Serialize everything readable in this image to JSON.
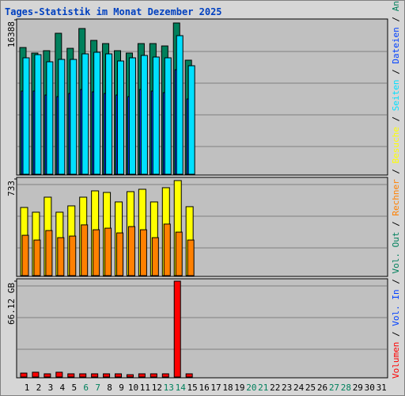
{
  "chart_data": [
    {
      "type": "bar",
      "title": "Tages-Statistik im Monat Dezember 2025",
      "categories": [
        "1",
        "2",
        "3",
        "4",
        "5",
        "6",
        "7",
        "8",
        "9",
        "10",
        "11",
        "12",
        "13",
        "14",
        "15",
        "16",
        "17",
        "18",
        "19",
        "20",
        "21",
        "22",
        "23",
        "24",
        "25",
        "26",
        "27",
        "28",
        "29",
        "30",
        "31"
      ],
      "category_colors": [
        "#000000",
        "#000000",
        "#000000",
        "#000000",
        "#000000",
        "#00805c",
        "#00805c",
        "#000000",
        "#000000",
        "#000000",
        "#000000",
        "#000000",
        "#00805c",
        "#00805c",
        "#000000",
        "#000000",
        "#000000",
        "#000000",
        "#000000",
        "#00805c",
        "#00805c",
        "#000000",
        "#000000",
        "#000000",
        "#000000",
        "#000000",
        "#00805c",
        "#00805c",
        "#000000",
        "#000000",
        "#000000"
      ],
      "legend_separator": " / ",
      "ylim": [
        0,
        16388
      ],
      "yticks": [
        16388
      ],
      "series": [
        {
          "name": "Seiten",
          "color": "#00e0ff",
          "values": [
            12354,
            12690,
            11934,
            12186,
            12186,
            12774,
            12942,
            12774,
            12018,
            12354,
            12606,
            12438,
            12354,
            14707,
            11514,
            null,
            null,
            null,
            null,
            null,
            null,
            null,
            null,
            null,
            null,
            null,
            null,
            null,
            null,
            null,
            null
          ]
        },
        {
          "name": "Dateien",
          "color": "#0040ff",
          "values": [
            8824,
            8824,
            8404,
            8236,
            8572,
            8992,
            8740,
            8572,
            8404,
            8236,
            8992,
            8824,
            8656,
            11093,
            7984,
            null,
            null,
            null,
            null,
            null,
            null,
            null,
            null,
            null,
            null,
            null,
            null,
            null,
            null,
            null,
            null
          ]
        },
        {
          "name": "Anfragen",
          "color": "#00805c",
          "values": [
            13447,
            12858,
            13110,
            14959,
            13362,
            15463,
            14203,
            13866,
            13110,
            12858,
            13866,
            13866,
            13614,
            16052,
            12102,
            null,
            null,
            null,
            null,
            null,
            null,
            null,
            null,
            null,
            null,
            null,
            null,
            null,
            null,
            null,
            null
          ]
        }
      ]
    },
    {
      "type": "bar",
      "ylim": [
        0,
        733
      ],
      "yticks": [
        733
      ],
      "series": [
        {
          "name": "Rechner",
          "color": "#ff8000",
          "values": [
            306,
            270,
            342,
            288,
            300,
            385,
            348,
            360,
            324,
            372,
            348,
            288,
            391,
            330,
            270,
            null,
            null,
            null,
            null,
            null,
            null,
            null,
            null,
            null,
            null,
            null,
            null,
            null,
            null,
            null,
            null
          ]
        },
        {
          "name": "Besuche",
          "color": "#ffff00",
          "values": [
            517,
            481,
            595,
            481,
            529,
            595,
            643,
            631,
            559,
            637,
            655,
            559,
            667,
            721,
            523,
            null,
            null,
            null,
            null,
            null,
            null,
            null,
            null,
            null,
            null,
            null,
            null,
            null,
            null,
            null,
            null
          ]
        }
      ]
    },
    {
      "type": "bar",
      "ylim": [
        0,
        66.12
      ],
      "yticks": [
        {
          "value": 66.12,
          "label": "66.12 GB"
        }
      ],
      "series": [
        {
          "name": "Volumen",
          "color": "#ff0000",
          "values": [
            2.7,
            3.3,
            2.2,
            3.3,
            2.2,
            2.2,
            2.2,
            2.2,
            2.2,
            1.6,
            2.2,
            2.2,
            2.2,
            66.12,
            2.2,
            null,
            null,
            null,
            null,
            null,
            null,
            null,
            null,
            null,
            null,
            null,
            null,
            null,
            null,
            null,
            null
          ]
        },
        {
          "name": "Vol. In",
          "color": "#0040ff",
          "values": [
            null,
            null,
            null,
            null,
            null,
            null,
            null,
            null,
            null,
            null,
            null,
            null,
            null,
            null,
            null,
            null,
            null,
            null,
            null,
            null,
            null,
            null,
            null,
            null,
            null,
            null,
            null,
            null,
            null,
            null,
            null
          ]
        },
        {
          "name": "Vol. Out",
          "color": "#00805c",
          "values": [
            null,
            null,
            null,
            null,
            null,
            null,
            null,
            null,
            null,
            null,
            null,
            null,
            null,
            null,
            null,
            null,
            null,
            null,
            null,
            null,
            null,
            null,
            null,
            null,
            null,
            null,
            null,
            null,
            null,
            null,
            null
          ]
        }
      ]
    }
  ]
}
